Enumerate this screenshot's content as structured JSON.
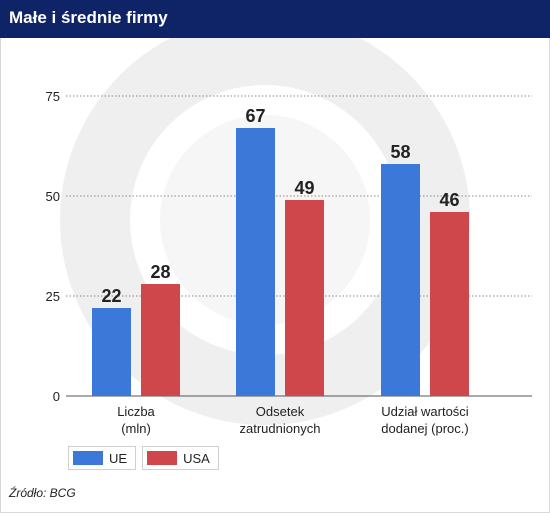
{
  "header": {
    "title": "Małe i średnie firmy"
  },
  "source": "Źródło: BCG",
  "colors": {
    "header_bg": "#0e2467",
    "UE": "#3c78d8",
    "USA": "#d0474b",
    "watermark": "#eeeeee"
  },
  "chart_data": {
    "type": "bar",
    "categories": [
      [
        "Liczba",
        "(mln)"
      ],
      [
        "Odsetek",
        "zatrudnionych"
      ],
      [
        "Udział wartości",
        "dodanej (proc.)"
      ]
    ],
    "series": [
      {
        "name": "UE",
        "values": [
          22,
          67,
          58
        ]
      },
      {
        "name": "USA",
        "values": [
          28,
          49,
          46
        ]
      }
    ],
    "yticks": [
      0,
      25,
      50,
      75
    ],
    "ylim": [
      0,
      75
    ],
    "grid": "dotted horizontal",
    "legend": "bottom-left",
    "title": "",
    "xlabel": "",
    "ylabel": ""
  }
}
